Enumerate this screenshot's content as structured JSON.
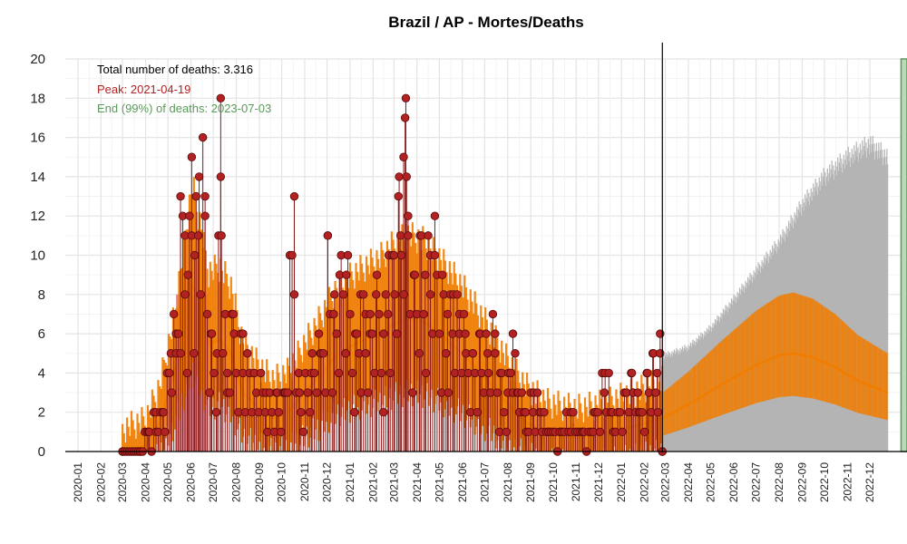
{
  "chart_data": {
    "type": "line",
    "title": "Brazil / AP - Mortes/Deaths",
    "xlabel": "",
    "ylabel": "",
    "ylim": [
      0,
      20
    ],
    "x_range": [
      "2019-12-15",
      "2023-01-20"
    ],
    "y_ticks": [
      "0",
      "2",
      "4",
      "6",
      "8",
      "10",
      "12",
      "14",
      "16",
      "18",
      "20"
    ],
    "x_ticks": [
      "2020-01",
      "2020-02",
      "2020-03",
      "2020-04",
      "2020-05",
      "2020-06",
      "2020-07",
      "2020-08",
      "2020-09",
      "2020-10",
      "2020-11",
      "2020-12",
      "2021-01",
      "2021-02",
      "2021-03",
      "2021-04",
      "2021-05",
      "2021-06",
      "2021-07",
      "2021-08",
      "2021-09",
      "2021-10",
      "2021-11",
      "2021-12",
      "2022-01",
      "2022-02",
      "2022-03",
      "2022-04",
      "2022-05",
      "2022-06",
      "2022-07",
      "2022-08",
      "2022-09",
      "2022-10",
      "2022-11",
      "2022-12"
    ],
    "grid": true,
    "annotations": {
      "total": "Total number of deaths: 3.316",
      "peak": "Peak: 2021-04-19",
      "end": "End (99%) of deaths: 2023-07-03"
    },
    "today": "2022-02-25",
    "peak_band": [
      "2020-05-12",
      "2020-06-24"
    ],
    "end_band_start": "2023-01-12",
    "colors": {
      "observed_point": "#b22222",
      "observed_stem": "#8b1a1a",
      "fit": "#f07c00",
      "forecast_bar": "#b4b4b4",
      "peak_band": "#d9727c",
      "end_band": "#b9d9b9",
      "end_band_edge": "#5a9a5a",
      "total_text": "#000000",
      "peak_text": "#b22222",
      "end_text": "#5a9a5a"
    },
    "observed_key_points": [
      {
        "date": "2020-03-01",
        "deaths": 0
      },
      {
        "date": "2020-03-25",
        "deaths": 0
      },
      {
        "date": "2020-04-05",
        "deaths": 1
      },
      {
        "date": "2020-04-15",
        "deaths": 2
      },
      {
        "date": "2020-04-25",
        "deaths": 2
      },
      {
        "date": "2020-05-05",
        "deaths": 5
      },
      {
        "date": "2020-05-12",
        "deaths": 6
      },
      {
        "date": "2020-05-18",
        "deaths": 13
      },
      {
        "date": "2020-05-24",
        "deaths": 11
      },
      {
        "date": "2020-05-28",
        "deaths": 9
      },
      {
        "date": "2020-06-02",
        "deaths": 15
      },
      {
        "date": "2020-06-06",
        "deaths": 10
      },
      {
        "date": "2020-06-12",
        "deaths": 14
      },
      {
        "date": "2020-06-20",
        "deaths": 13
      },
      {
        "date": "2020-06-28",
        "deaths": 6
      },
      {
        "date": "2020-07-06",
        "deaths": 5
      },
      {
        "date": "2020-07-11",
        "deaths": 18
      },
      {
        "date": "2020-07-12",
        "deaths": 11
      },
      {
        "date": "2020-07-20",
        "deaths": 4
      },
      {
        "date": "2020-07-28",
        "deaths": 7
      },
      {
        "date": "2020-08-10",
        "deaths": 6
      },
      {
        "date": "2020-08-25",
        "deaths": 4
      },
      {
        "date": "2020-09-10",
        "deaths": 3
      },
      {
        "date": "2020-09-25",
        "deaths": 3
      },
      {
        "date": "2020-10-05",
        "deaths": 3
      },
      {
        "date": "2020-10-18",
        "deaths": 13
      },
      {
        "date": "2020-10-25",
        "deaths": 3
      },
      {
        "date": "2020-11-10",
        "deaths": 4
      },
      {
        "date": "2020-11-22",
        "deaths": 5
      },
      {
        "date": "2020-12-02",
        "deaths": 11
      },
      {
        "date": "2020-12-10",
        "deaths": 7
      },
      {
        "date": "2020-12-18",
        "deaths": 9
      },
      {
        "date": "2020-12-27",
        "deaths": 9
      },
      {
        "date": "2021-01-08",
        "deaths": 6
      },
      {
        "date": "2021-01-15",
        "deaths": 8
      },
      {
        "date": "2021-01-22",
        "deaths": 7
      },
      {
        "date": "2021-01-28",
        "deaths": 6
      },
      {
        "date": "2021-02-05",
        "deaths": 8
      },
      {
        "date": "2021-02-15",
        "deaths": 6
      },
      {
        "date": "2021-02-22",
        "deaths": 10
      },
      {
        "date": "2021-03-01",
        "deaths": 10
      },
      {
        "date": "2021-03-07",
        "deaths": 13
      },
      {
        "date": "2021-03-10",
        "deaths": 11
      },
      {
        "date": "2021-03-14",
        "deaths": 15
      },
      {
        "date": "2021-03-16",
        "deaths": 17
      },
      {
        "date": "2021-03-18",
        "deaths": 14
      },
      {
        "date": "2021-03-20",
        "deaths": 12
      },
      {
        "date": "2021-03-28",
        "deaths": 9
      },
      {
        "date": "2021-04-05",
        "deaths": 11
      },
      {
        "date": "2021-04-12",
        "deaths": 9
      },
      {
        "date": "2021-04-19",
        "deaths": 10
      },
      {
        "date": "2021-04-25",
        "deaths": 10
      },
      {
        "date": "2021-05-05",
        "deaths": 9
      },
      {
        "date": "2021-05-12",
        "deaths": 7
      },
      {
        "date": "2021-05-20",
        "deaths": 8
      },
      {
        "date": "2021-05-28",
        "deaths": 7
      },
      {
        "date": "2021-06-05",
        "deaths": 6
      },
      {
        "date": "2021-06-15",
        "deaths": 5
      },
      {
        "date": "2021-06-25",
        "deaths": 6
      },
      {
        "date": "2021-07-05",
        "deaths": 5
      },
      {
        "date": "2021-07-15",
        "deaths": 6
      },
      {
        "date": "2021-07-22",
        "deaths": 4
      },
      {
        "date": "2021-08-01",
        "deaths": 3
      },
      {
        "date": "2021-08-08",
        "deaths": 6
      },
      {
        "date": "2021-08-15",
        "deaths": 3
      },
      {
        "date": "2021-08-25",
        "deaths": 2
      },
      {
        "date": "2021-09-05",
        "deaths": 3
      },
      {
        "date": "2021-09-15",
        "deaths": 2
      },
      {
        "date": "2021-09-25",
        "deaths": 1
      },
      {
        "date": "2021-10-10",
        "deaths": 1
      },
      {
        "date": "2021-10-25",
        "deaths": 2
      },
      {
        "date": "2021-11-10",
        "deaths": 1
      },
      {
        "date": "2021-11-25",
        "deaths": 2
      },
      {
        "date": "2021-12-10",
        "deaths": 4
      },
      {
        "date": "2021-12-20",
        "deaths": 2
      },
      {
        "date": "2022-01-05",
        "deaths": 3
      },
      {
        "date": "2022-01-15",
        "deaths": 4
      },
      {
        "date": "2022-01-25",
        "deaths": 2
      },
      {
        "date": "2022-02-05",
        "deaths": 4
      },
      {
        "date": "2022-02-12",
        "deaths": 5
      },
      {
        "date": "2022-02-18",
        "deaths": 4
      },
      {
        "date": "2022-02-22",
        "deaths": 5
      },
      {
        "date": "2022-02-25",
        "deaths": 0
      }
    ],
    "fit_key_points": [
      {
        "date": "2020-03-01",
        "deaths": 0
      },
      {
        "date": "2020-04-01",
        "deaths": 0.3
      },
      {
        "date": "2020-04-20",
        "deaths": 1.5
      },
      {
        "date": "2020-05-10",
        "deaths": 4
      },
      {
        "date": "2020-05-25",
        "deaths": 7
      },
      {
        "date": "2020-06-03",
        "deaths": 8.6
      },
      {
        "date": "2020-06-15",
        "deaths": 7
      },
      {
        "date": "2020-06-25",
        "deaths": 5.5
      },
      {
        "date": "2020-07-10",
        "deaths": 5.7
      },
      {
        "date": "2020-07-25",
        "deaths": 5
      },
      {
        "date": "2020-08-10",
        "deaths": 3
      },
      {
        "date": "2020-09-01",
        "deaths": 2.2
      },
      {
        "date": "2020-09-20",
        "deaths": 1.7
      },
      {
        "date": "2020-10-10",
        "deaths": 2
      },
      {
        "date": "2020-11-01",
        "deaths": 3
      },
      {
        "date": "2020-11-20",
        "deaths": 3.8
      },
      {
        "date": "2020-12-15",
        "deaths": 5
      },
      {
        "date": "2021-01-15",
        "deaths": 5.6
      },
      {
        "date": "2021-02-10",
        "deaths": 6
      },
      {
        "date": "2021-03-01",
        "deaths": 6.5
      },
      {
        "date": "2021-03-20",
        "deaths": 6.8
      },
      {
        "date": "2021-04-10",
        "deaths": 6.6
      },
      {
        "date": "2021-05-01",
        "deaths": 6
      },
      {
        "date": "2021-06-01",
        "deaths": 5
      },
      {
        "date": "2021-07-01",
        "deaths": 3.8
      },
      {
        "date": "2021-08-01",
        "deaths": 2.4
      },
      {
        "date": "2021-08-25",
        "deaths": 1.5
      },
      {
        "date": "2021-09-25",
        "deaths": 0.9
      },
      {
        "date": "2021-11-01",
        "deaths": 0.7
      },
      {
        "date": "2021-12-10",
        "deaths": 0.9
      },
      {
        "date": "2022-01-20",
        "deaths": 1.3
      },
      {
        "date": "2022-02-25",
        "deaths": 1.7
      },
      {
        "date": "2022-04-01",
        "deaths": 2.4
      },
      {
        "date": "2022-05-15",
        "deaths": 3.4
      },
      {
        "date": "2022-07-01",
        "deaths": 4.4
      },
      {
        "date": "2022-08-01",
        "deaths": 4.9
      },
      {
        "date": "2022-08-20",
        "deaths": 5
      },
      {
        "date": "2022-09-15",
        "deaths": 4.8
      },
      {
        "date": "2022-10-15",
        "deaths": 4.3
      },
      {
        "date": "2022-11-15",
        "deaths": 3.6
      },
      {
        "date": "2022-12-25",
        "deaths": 3
      }
    ],
    "forecast_upper_key_points": [
      {
        "date": "2022-02-25",
        "deaths": 5
      },
      {
        "date": "2022-04-01",
        "deaths": 5.5
      },
      {
        "date": "2022-05-01",
        "deaths": 6.5
      },
      {
        "date": "2022-06-01",
        "deaths": 8
      },
      {
        "date": "2022-07-01",
        "deaths": 9.5
      },
      {
        "date": "2022-08-01",
        "deaths": 11
      },
      {
        "date": "2022-09-01",
        "deaths": 13
      },
      {
        "date": "2022-10-01",
        "deaths": 14.5
      },
      {
        "date": "2022-11-01",
        "deaths": 15.5
      },
      {
        "date": "2022-12-01",
        "deaths": 16.2
      },
      {
        "date": "2022-12-25",
        "deaths": 15.5
      }
    ]
  }
}
